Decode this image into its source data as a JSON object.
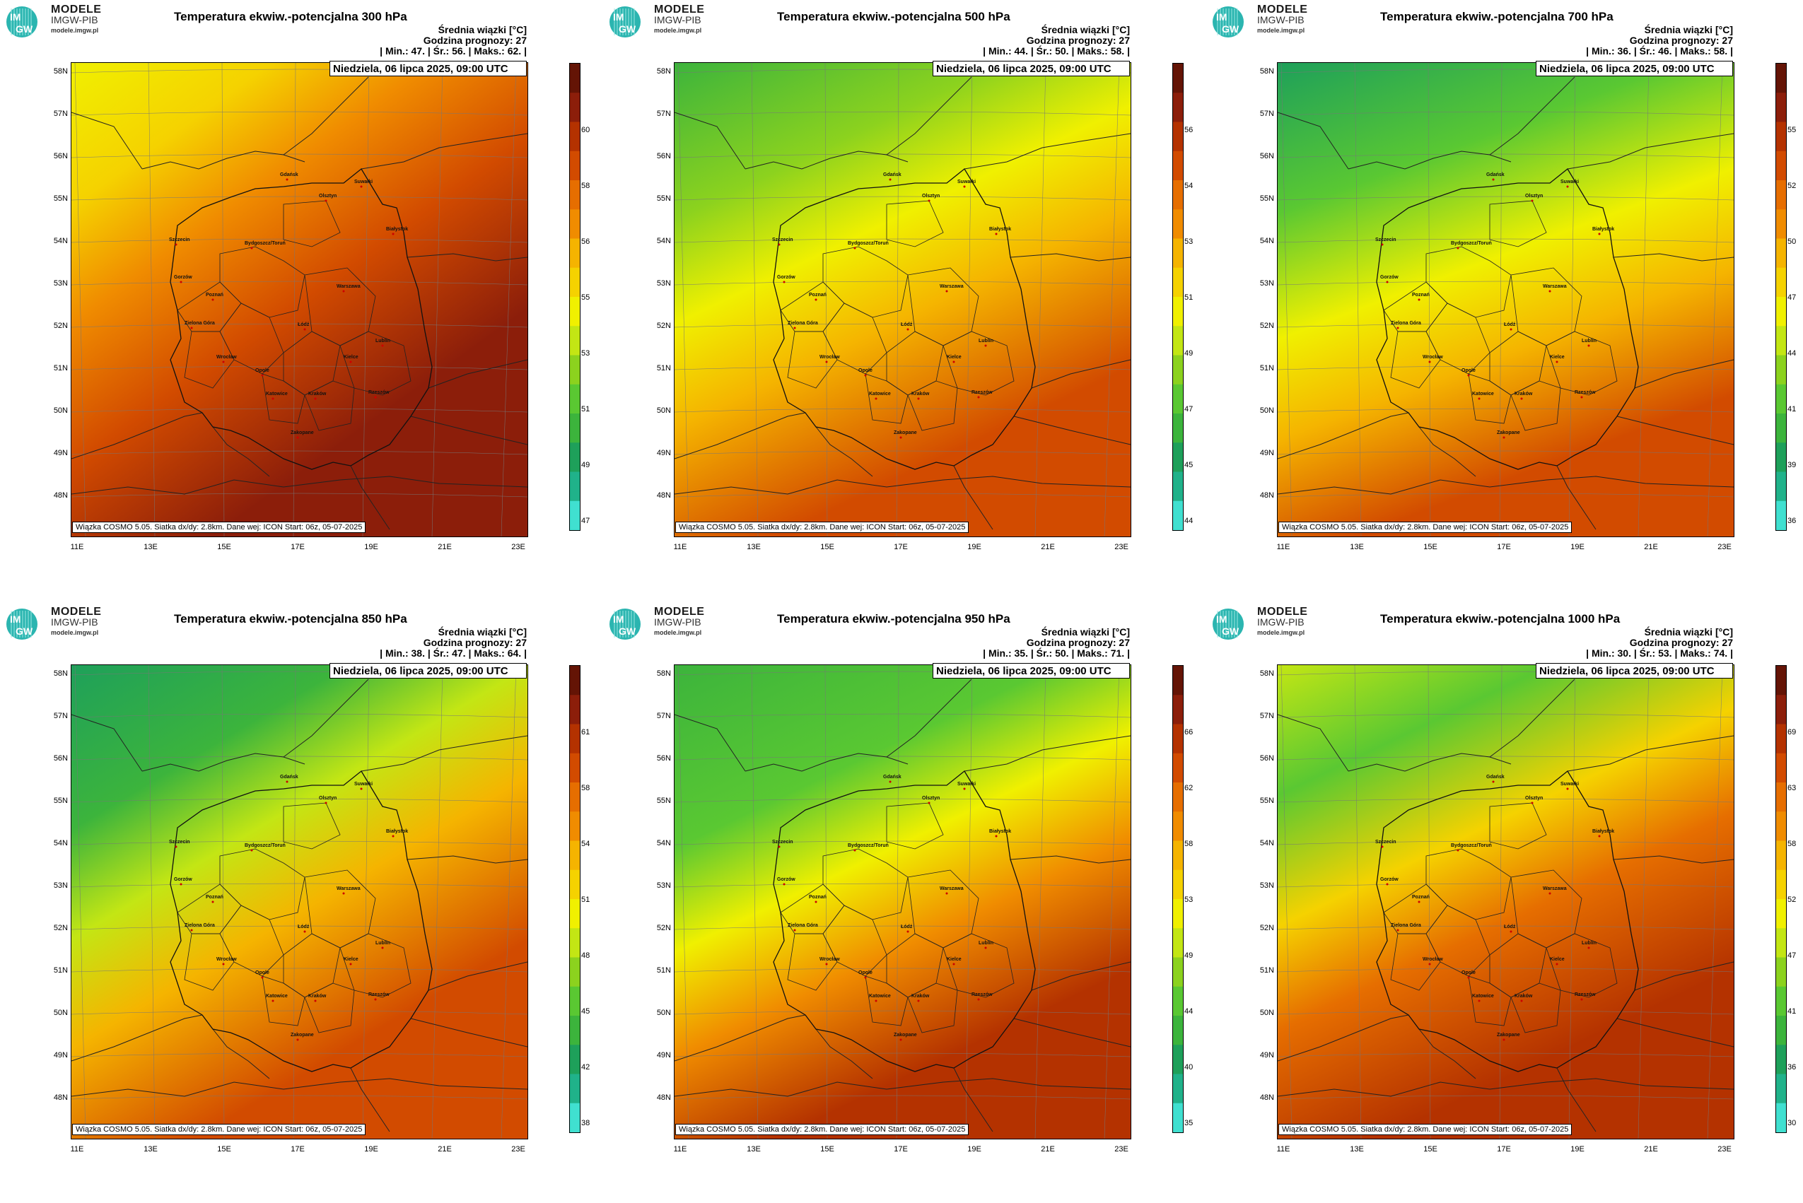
{
  "header": {
    "brand_main": "MODELE",
    "brand_sub": "IMGW-PIB",
    "brand_url": "modele.imgw.pl",
    "logo_text_top": "IM",
    "logo_text_bottom": "GW"
  },
  "common": {
    "info_title": "Średnia wiązki [°C]",
    "forecast_hour": "Godzina prognozy: 27",
    "datetime": "Niedziela, 06 lipca 2025, 09:00 UTC",
    "footer": "Wiązka COSMO 5.05. Siatka dx/dy: 2.8km. Dane wej: ICON Start: 06z, 05-07-2025",
    "lat_labels": [
      "58N",
      "57N",
      "56N",
      "55N",
      "54N",
      "53N",
      "52N",
      "51N",
      "50N",
      "49N",
      "48N"
    ],
    "lon_labels": [
      "11E",
      "13E",
      "15E",
      "17E",
      "19E",
      "21E",
      "23E"
    ],
    "cities": [
      "Gdańsk",
      "Olsztyn",
      "Suwałki",
      "Szczecin",
      "Białystok",
      "Bydgoszcz/Toruń",
      "Gorzów",
      "Poznań",
      "Warszawa",
      "Zielona Góra",
      "Łódź",
      "Lublin",
      "Wrocław",
      "Kielce",
      "Opole",
      "Katowice",
      "Kraków",
      "Rzeszów",
      "Zakopane"
    ],
    "palette": [
      "#40e0d0",
      "#20b28a",
      "#1ea05a",
      "#3cb43c",
      "#5ac832",
      "#8cd21e",
      "#c3e614",
      "#f0f000",
      "#f5d200",
      "#f5b400",
      "#f08c00",
      "#e66e00",
      "#d24b00",
      "#b43200",
      "#8c1e0a",
      "#641405"
    ]
  },
  "panels": [
    {
      "title": "Temperatura ekwiw.-potencjalna 300 hPa",
      "stats": "| Min.:    47. | Śr.:    56. | Maks.:    62. |",
      "cbar_ticks": [
        "60",
        "58",
        "56",
        "55",
        "53",
        "51",
        "49",
        "47"
      ]
    },
    {
      "title": "Temperatura ekwiw.-potencjalna 500 hPa",
      "stats": "| Min.:    44. | Śr.:    50. | Maks.:    58. |",
      "cbar_ticks": [
        "56",
        "54",
        "53",
        "51",
        "49",
        "47",
        "45",
        "44"
      ]
    },
    {
      "title": "Temperatura ekwiw.-potencjalna 700 hPa",
      "stats": "| Min.:    36. | Śr.:    46. | Maks.:    58. |",
      "cbar_ticks": [
        "55",
        "52",
        "50",
        "47",
        "44",
        "41",
        "39",
        "36"
      ]
    },
    {
      "title": "Temperatura ekwiw.-potencjalna 850 hPa",
      "stats": "| Min.:    38. | Śr.:    47. | Maks.:    64. |",
      "cbar_ticks": [
        "61",
        "58",
        "54",
        "51",
        "48",
        "45",
        "42",
        "38"
      ]
    },
    {
      "title": "Temperatura ekwiw.-potencjalna 950 hPa",
      "stats": "| Min.:    35. | Śr.:    50. | Maks.:    71. |",
      "cbar_ticks": [
        "66",
        "62",
        "58",
        "53",
        "49",
        "44",
        "40",
        "35"
      ]
    },
    {
      "title": "Temperatura ekwiw.-potencjalna 1000 hPa",
      "stats": "| Min.:    30. | Śr.:    53. | Maks.:    74. |",
      "cbar_ticks": [
        "69",
        "63",
        "58",
        "52",
        "47",
        "41",
        "36",
        "30"
      ]
    }
  ]
}
